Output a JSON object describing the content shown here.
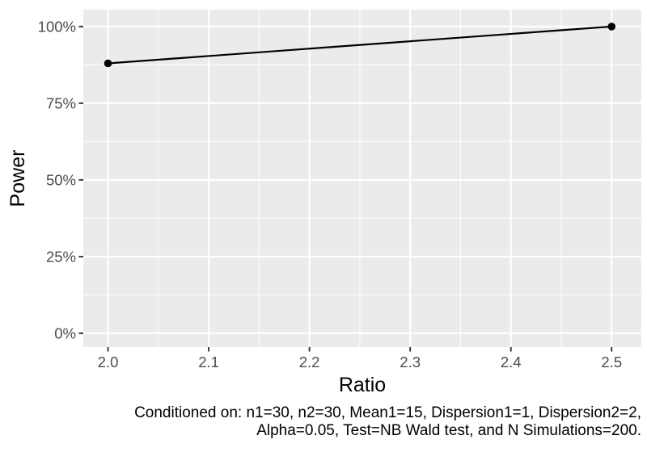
{
  "figure": {
    "kind": "statistical-power-plot"
  },
  "chart_data": {
    "type": "line",
    "title": "",
    "xlabel": "Ratio",
    "ylabel": "Power",
    "x": [
      2.0,
      2.5
    ],
    "series": [
      {
        "name": "Power",
        "values": [
          88,
          100
        ]
      }
    ],
    "y_unit": "percent",
    "xlim": [
      1.9755,
      2.5295
    ],
    "ylim": [
      -4.5,
      105.5
    ],
    "x_ticks": {
      "values": [
        2.0,
        2.1,
        2.2,
        2.3,
        2.4,
        2.5
      ],
      "labels": [
        "2.0",
        "2.1",
        "2.2",
        "2.3",
        "2.4",
        "2.5"
      ]
    },
    "y_ticks": {
      "values": [
        0,
        25,
        50,
        75,
        100
      ],
      "labels": [
        "0%",
        "25%",
        "50%",
        "75%",
        "100%"
      ]
    },
    "grid": "major+minor",
    "legend": "none",
    "caption": {
      "line1": "Conditioned on: n1=30, n2=30, Mean1=15, Dispersion1=1, Dispersion2=2,",
      "line2": "Alpha=0.05, Test=NB Wald test, and N Simulations=200."
    },
    "theme": {
      "panel_bg": "#EBEBEB",
      "grid_color": "#FFFFFF",
      "line_color": "#000000",
      "point_color": "#000000",
      "tick_label_color": "#4D4D4D",
      "tick_mark_color": "#333333",
      "title_color": "#000000",
      "background": "#FFFFFF"
    }
  }
}
